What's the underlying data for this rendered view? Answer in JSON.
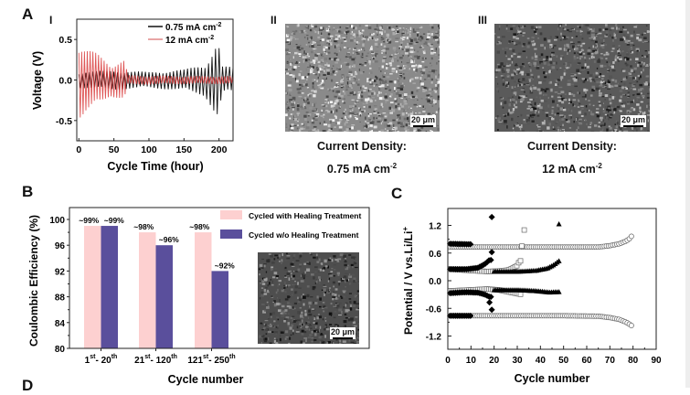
{
  "figure": {
    "panels": {
      "A": {
        "letter": "A",
        "sub_I": "I",
        "sub_II": "II",
        "sub_III": "III",
        "caption_II_line1": "Current Density:",
        "caption_II_line2": "0.75 mA cm",
        "caption_II_sup": "-2",
        "caption_III_line1": "Current Density:",
        "caption_III_line2": "12 mA cm",
        "caption_III_sup": "-2",
        "scale_II": "20 μm",
        "scale_III": "20 μm"
      },
      "B": {
        "letter": "B",
        "scale_inset": "20 μm"
      },
      "C": {
        "letter": "C"
      },
      "D": {
        "letter": "D"
      }
    }
  },
  "chart_data": [
    {
      "id": "A-I",
      "type": "line",
      "title": "",
      "xlabel": "Cycle Time (hour)",
      "ylabel": "Voltage (V)",
      "xlim": [
        -3,
        220
      ],
      "ylim": [
        -0.75,
        0.75
      ],
      "xticks": [
        0,
        50,
        100,
        150,
        200
      ],
      "yticks": [
        0.5,
        0.0,
        -0.5
      ],
      "ytick_labels": [
        "0.5",
        "0.0",
        "-0.5"
      ],
      "legend_position": "top-right",
      "series": [
        {
          "name": "0.75 mA cm",
          "name_sup": "-2",
          "color": "#111111",
          "cycle_period_h": 5,
          "envelope": [
            {
              "x": 0,
              "amp": 0.1
            },
            {
              "x": 50,
              "amp": 0.12
            },
            {
              "x": 100,
              "amp": 0.1
            },
            {
              "x": 150,
              "amp": 0.13
            },
            {
              "x": 180,
              "amp": 0.2
            },
            {
              "x": 190,
              "amp": 0.35
            },
            {
              "x": 197,
              "amp": 0.47
            },
            {
              "x": 200,
              "amp": 0.42
            },
            {
              "x": 205,
              "amp": 0.17
            },
            {
              "x": 220,
              "amp": 0.16
            }
          ]
        },
        {
          "name": "12 mA cm",
          "name_sup": "-2",
          "color": "#d42a2a",
          "cycle_period_h": 4,
          "envelope": [
            {
              "x": 0,
              "amp": 0.48
            },
            {
              "x": 10,
              "amp": 0.4
            },
            {
              "x": 25,
              "amp": 0.33
            },
            {
              "x": 45,
              "amp": 0.2
            },
            {
              "x": 65,
              "amp": 0.25
            },
            {
              "x": 70,
              "amp": 0.06
            },
            {
              "x": 150,
              "amp": 0.05
            },
            {
              "x": 220,
              "amp": 0.05
            }
          ]
        }
      ]
    },
    {
      "id": "B",
      "type": "bar",
      "title": "",
      "xlabel": "Cycle number",
      "ylabel": "Coulombic Efficiency (%)",
      "ylim": [
        80,
        102
      ],
      "yticks": [
        80,
        84,
        88,
        92,
        96,
        100
      ],
      "categories": [
        {
          "main1": "1",
          "sup1": "st",
          "main2": "- 20",
          "sup2": "th"
        },
        {
          "main1": "21",
          "sup1": "st",
          "main2": "- 120",
          "sup2": "th"
        },
        {
          "main1": "121",
          "sup1": "st",
          "main2": "- 250",
          "sup2": "th"
        }
      ],
      "legend_position": "top-right",
      "series": [
        {
          "name": "Cycled with Healing Treatment",
          "color": "#fdd0d0",
          "values": [
            99,
            98,
            98
          ],
          "labels": [
            "~99%",
            "~98%",
            "~98%"
          ]
        },
        {
          "name": "Cycled w/o Healing Treatment",
          "color": "#5a4f9c",
          "values": [
            99,
            96,
            92
          ],
          "labels": [
            "~99%",
            "~96%",
            "~92%"
          ]
        }
      ]
    },
    {
      "id": "C",
      "type": "scatter",
      "title": "",
      "xlabel": "Cycle number",
      "ylabel": "Potential / V vs.Li/Li",
      "ylabel_sup": "+",
      "xlim": [
        0,
        90
      ],
      "ylim": [
        -1.5,
        1.55
      ],
      "xticks": [
        0,
        10,
        20,
        30,
        40,
        50,
        60,
        70,
        80,
        90
      ],
      "yticks": [
        1.2,
        0.6,
        0.0,
        -0.6,
        -1.2
      ],
      "ytick_labels": [
        "1.2",
        "0.6",
        "0.0",
        "-0.6",
        "-1.2"
      ],
      "series": [
        {
          "name": "open-circle",
          "marker": "circle-open",
          "upper": [
            [
              1,
              0.73
            ],
            [
              10,
              0.73
            ],
            [
              30,
              0.73
            ],
            [
              50,
              0.73
            ],
            [
              65,
              0.73
            ],
            [
              70,
              0.76
            ],
            [
              74,
              0.8
            ],
            [
              77,
              0.86
            ],
            [
              79,
              0.93
            ],
            [
              80,
              1.04
            ]
          ],
          "lower": [
            [
              1,
              -0.76
            ],
            [
              10,
              -0.76
            ],
            [
              30,
              -0.76
            ],
            [
              50,
              -0.76
            ],
            [
              65,
              -0.77
            ],
            [
              70,
              -0.8
            ],
            [
              74,
              -0.84
            ],
            [
              77,
              -0.9
            ],
            [
              79,
              -0.96
            ],
            [
              80,
              -1.0
            ]
          ],
          "end": 80
        },
        {
          "name": "open-square",
          "marker": "square-open",
          "upper": [
            [
              1,
              0.25
            ],
            [
              10,
              0.22
            ],
            [
              17,
              0.2
            ],
            [
              22,
              0.21
            ],
            [
              26,
              0.23
            ],
            [
              28,
              0.27
            ],
            [
              30,
              0.33
            ],
            [
              31,
              0.43
            ]
          ],
          "lower": [
            [
              1,
              -0.22
            ],
            [
              10,
              -0.2
            ],
            [
              17,
              -0.18
            ],
            [
              22,
              -0.2
            ],
            [
              26,
              -0.24
            ],
            [
              30,
              -0.28
            ],
            [
              32,
              -0.3
            ]
          ],
          "outliers": [
            [
              32,
              0.75
            ],
            [
              33,
              1.1
            ]
          ],
          "end": 32
        },
        {
          "name": "filled-diamond",
          "marker": "diamond-filled",
          "upper": [
            [
              1,
              0.25
            ],
            [
              8,
              0.25
            ],
            [
              13,
              0.28
            ],
            [
              16,
              0.36
            ],
            [
              18,
              0.45
            ]
          ],
          "lower": [
            [
              1,
              -0.27
            ],
            [
              8,
              -0.25
            ],
            [
              13,
              -0.26
            ],
            [
              16,
              -0.3
            ],
            [
              18,
              -0.35
            ]
          ],
          "upper_high": [
            [
              1,
              0.8
            ],
            [
              10,
              0.79
            ]
          ],
          "lower_low": [
            [
              1,
              -0.76
            ],
            [
              10,
              -0.76
            ]
          ],
          "outliers": [
            [
              19,
              0.62
            ],
            [
              19,
              1.38
            ],
            [
              18,
              -0.47
            ],
            [
              19,
              -0.63
            ]
          ],
          "end": 19
        },
        {
          "name": "filled-triangle",
          "marker": "triangle-filled",
          "upper": [
            [
              20,
              0.2
            ],
            [
              30,
              0.2
            ],
            [
              38,
              0.22
            ],
            [
              43,
              0.27
            ],
            [
              46,
              0.35
            ],
            [
              48,
              0.43
            ]
          ],
          "lower": [
            [
              20,
              -0.2
            ],
            [
              30,
              -0.2
            ],
            [
              38,
              -0.22
            ],
            [
              44,
              -0.25
            ],
            [
              48,
              -0.24
            ]
          ],
          "outliers": [
            [
              48,
              1.23
            ]
          ],
          "end": 48
        }
      ]
    }
  ]
}
